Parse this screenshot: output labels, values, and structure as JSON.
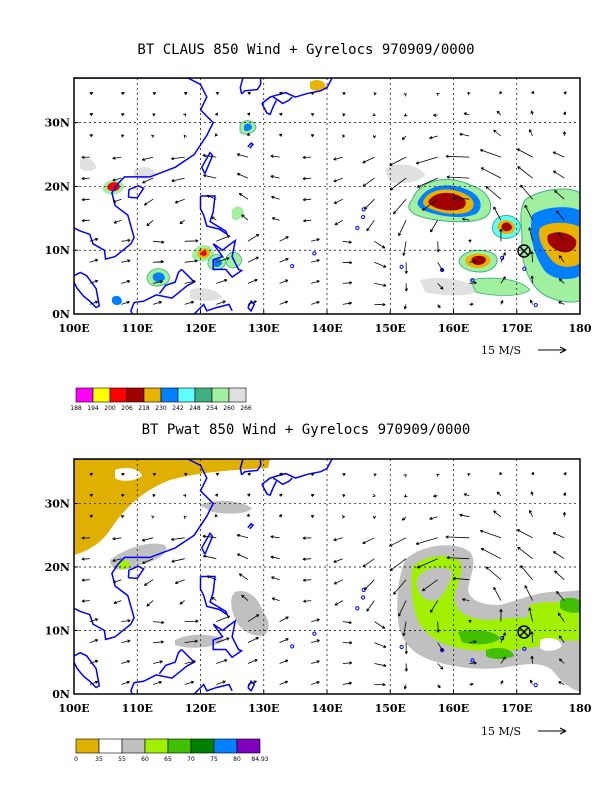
{
  "panels": [
    {
      "title": "BT CLAUS 850 Wind + Gyrelocs 970909/0000",
      "lon_labels": [
        "100E",
        "110E",
        "120E",
        "130E",
        "140E",
        "150E",
        "160E",
        "170E",
        "180"
      ],
      "lat_labels": [
        "0N",
        "10N",
        "20N",
        "30N"
      ],
      "vector_scale": "15 M/S",
      "colorbar": {
        "labels": [
          "188",
          "194",
          "200",
          "206",
          "218",
          "230",
          "242",
          "248",
          "254",
          "260",
          "266"
        ],
        "colors": [
          "#ff00ff",
          "#ffff00",
          "#ff0000",
          "#a00000",
          "#e8b400",
          "#0080ff",
          "#60ffff",
          "#40b080",
          "#a0f0a0",
          "#e0e0e0"
        ]
      },
      "gyre_center": {
        "lon": 170.5,
        "lat": 9.5
      }
    },
    {
      "title": "BT Pwat 850 Wind + Gyrelocs 970909/0000",
      "lon_labels": [
        "100E",
        "110E",
        "120E",
        "130E",
        "140E",
        "150E",
        "160E",
        "170E",
        "180"
      ],
      "lat_labels": [
        "0N",
        "10N",
        "20N",
        "30N"
      ],
      "vector_scale": "15 M/S",
      "colorbar": {
        "labels": [
          "0",
          "35",
          "55",
          "60",
          "65",
          "70",
          "75",
          "80",
          "84.93"
        ],
        "colors": [
          "#e0b000",
          "#ffffff",
          "#c0c0c0",
          "#a0f000",
          "#40c000",
          "#008000",
          "#0080ff",
          "#8000c0"
        ]
      },
      "gyre_center": {
        "lon": 170.5,
        "lat": 9.5
      }
    }
  ]
}
